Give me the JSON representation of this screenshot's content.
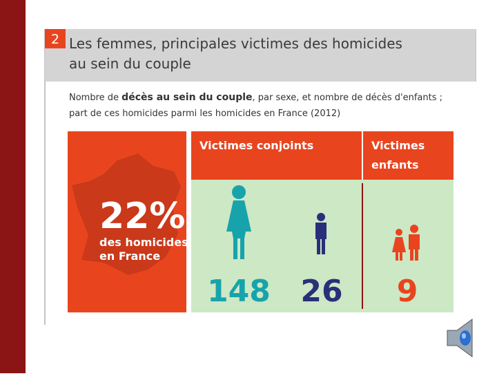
{
  "header": {
    "number": "2",
    "title_line1": "Les femmes, principales victimes des homicides",
    "title_line2": "au sein du couple"
  },
  "subtitle": {
    "line1_start": "Nombre de ",
    "line1_bold": "décès au sein du couple",
    "line1_end": ", par sexe, et nombre de décès d'enfants ;",
    "line2": "part de ces homicides parmi les homicides en France (2012)"
  },
  "france": {
    "share": "22%",
    "caption_line1": "des homicides",
    "caption_line2": "en France"
  },
  "panels": {
    "spouses_heading": "Victimes conjoints",
    "children_heading_line1": "Victimes",
    "children_heading_line2": "enfants",
    "women": 148,
    "men": 26,
    "children": 9
  }
}
